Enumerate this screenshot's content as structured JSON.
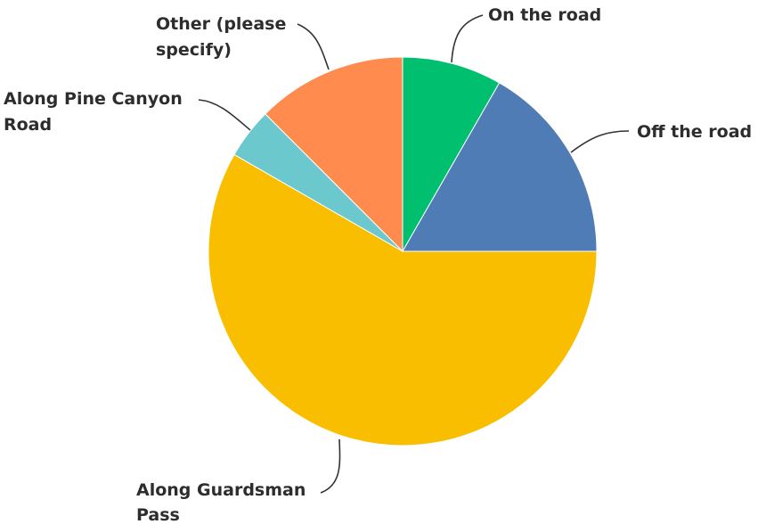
{
  "chart_data": {
    "type": "pie",
    "title": "",
    "slices": [
      {
        "label": "On the road",
        "label_lines": [
          "On the road"
        ],
        "value": 8.3,
        "color": "#00bf6f"
      },
      {
        "label": "Off the road",
        "label_lines": [
          "Off the road"
        ],
        "value": 16.7,
        "color": "#507cb6"
      },
      {
        "label": "Along Guardsman Pass",
        "label_lines": [
          "Along Guardsman",
          "Pass"
        ],
        "value": 58.3,
        "color": "#f9be00"
      },
      {
        "label": "Along Pine Canyon Road",
        "label_lines": [
          "Along Pine Canyon",
          "Road"
        ],
        "value": 4.2,
        "color": "#6bc8cd"
      },
      {
        "label": "Other (please specify)",
        "label_lines": [
          "Other (please",
          "specify)"
        ],
        "value": 12.5,
        "color": "#ff8b4f"
      }
    ],
    "legend": "none",
    "start_angle": "top",
    "direction": "clockwise"
  }
}
